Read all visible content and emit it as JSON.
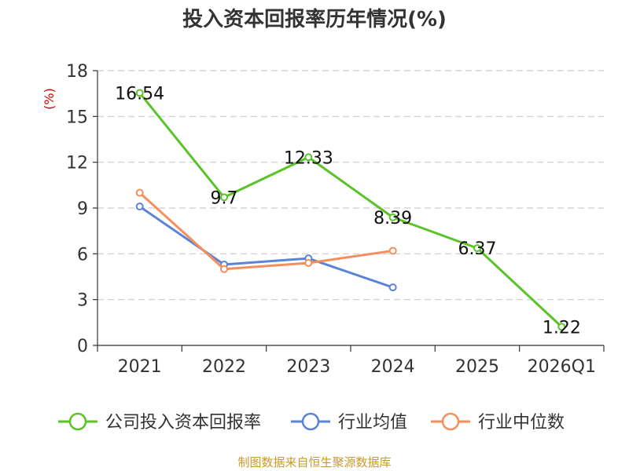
{
  "chart_data": {
    "type": "line",
    "title": "投入资本回报率历年情况(%)",
    "ylabel": "(%)",
    "xlabel": "",
    "categories": [
      "2021",
      "2022",
      "2023",
      "2024",
      "2025",
      "2026Q1"
    ],
    "ylim": [
      0,
      18
    ],
    "yticks": [
      0,
      3,
      6,
      9,
      12,
      15,
      18
    ],
    "grid": true,
    "legend_position": "bottom",
    "series": [
      {
        "name": "公司投入资本回报率",
        "color": "#5ac328",
        "values": [
          16.54,
          9.7,
          12.33,
          8.39,
          6.37,
          1.22
        ],
        "labels": [
          "16.54",
          "9.7",
          "12.33",
          "8.39",
          "6.37",
          "1.22"
        ]
      },
      {
        "name": "行业均值",
        "color": "#5b83d8",
        "values": [
          9.1,
          5.3,
          5.7,
          3.8,
          null,
          null
        ]
      },
      {
        "name": "行业中位数",
        "color": "#f48f5d",
        "values": [
          10.0,
          5.0,
          5.4,
          6.2,
          null,
          null
        ]
      }
    ],
    "source": "制图数据来自恒生聚源数据库"
  }
}
